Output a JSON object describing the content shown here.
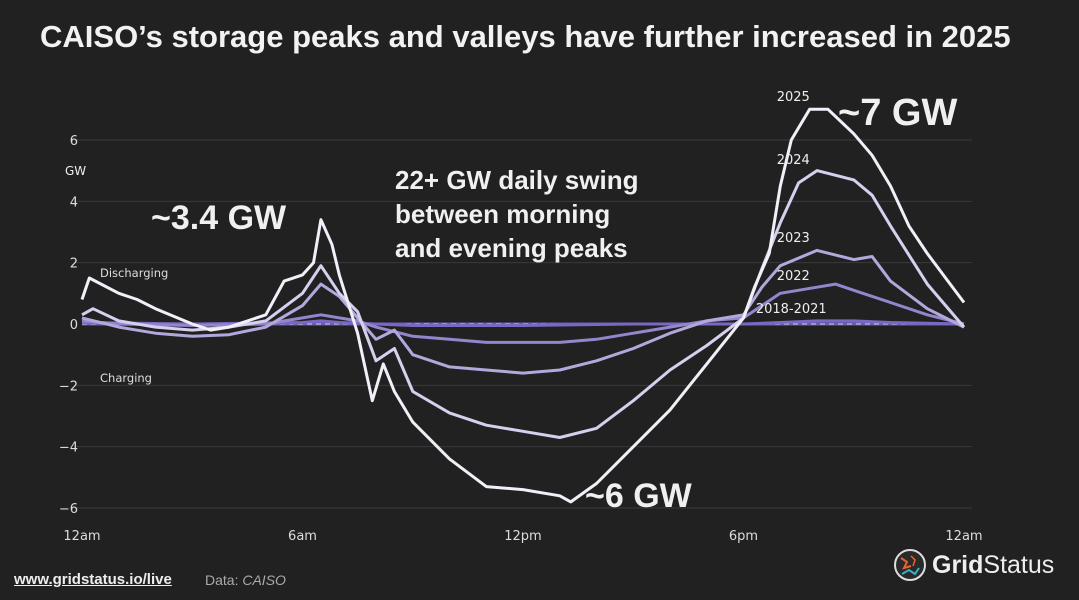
{
  "title": "CAISO’s storage peaks and valleys have further increased in 2025",
  "footer": {
    "link": "www.gridstatus.io/live",
    "source_label": "Data:",
    "source": "CAISO"
  },
  "logo": {
    "bold": "Grid",
    "regular": "Status"
  },
  "chart_data": {
    "type": "line",
    "title": "CAISO’s storage peaks and valleys have further increased in 2025",
    "ylabel": "GW",
    "ylim": [
      -6.5,
      7.2
    ],
    "yticks": [
      -6,
      -4,
      -2,
      0,
      2,
      4,
      6
    ],
    "ytick_labels": [
      "−6",
      "−4",
      "−2",
      "0",
      "2",
      "4",
      "6"
    ],
    "xlim": [
      0,
      24
    ],
    "xticks": [
      0,
      6,
      12,
      18,
      24
    ],
    "xtick_labels": [
      "12am",
      "6am",
      "12pm",
      "6pm",
      "12am"
    ],
    "grid": true,
    "zone_labels": {
      "discharging": "Discharging",
      "charging": "Charging"
    },
    "annotations": {
      "morning_peak": "~3.4 GW",
      "evening_peak": "~7 GW",
      "valley": "~6 GW",
      "swing": [
        "22+ GW daily swing",
        "between morning",
        "and evening peaks"
      ]
    },
    "series": [
      {
        "name": "2018-2021",
        "color": "#7a68c2",
        "points": [
          [
            0,
            0.05
          ],
          [
            3,
            0
          ],
          [
            6,
            0.05
          ],
          [
            6.5,
            0.1
          ],
          [
            7,
            0.05
          ],
          [
            9,
            -0.05
          ],
          [
            12,
            -0.05
          ],
          [
            15,
            0
          ],
          [
            18,
            0
          ],
          [
            19,
            0.05
          ],
          [
            20,
            0.1
          ],
          [
            21,
            0.1
          ],
          [
            22,
            0.05
          ],
          [
            24,
            0
          ]
        ]
      },
      {
        "name": "2022",
        "color": "#9485cc",
        "points": [
          [
            0,
            0.1
          ],
          [
            1,
            0
          ],
          [
            3,
            -0.05
          ],
          [
            5,
            0
          ],
          [
            6,
            0.2
          ],
          [
            6.5,
            0.3
          ],
          [
            7,
            0.2
          ],
          [
            7.5,
            0.1
          ],
          [
            8,
            -0.1
          ],
          [
            9,
            -0.4
          ],
          [
            10,
            -0.5
          ],
          [
            11,
            -0.6
          ],
          [
            12,
            -0.6
          ],
          [
            13,
            -0.6
          ],
          [
            14,
            -0.5
          ],
          [
            15,
            -0.3
          ],
          [
            16,
            -0.1
          ],
          [
            17,
            0.1
          ],
          [
            18,
            0.2
          ],
          [
            18.5,
            0.6
          ],
          [
            19,
            1.0
          ],
          [
            20,
            1.2
          ],
          [
            20.5,
            1.3
          ],
          [
            21,
            1.1
          ],
          [
            22,
            0.7
          ],
          [
            23,
            0.3
          ],
          [
            24,
            0
          ]
        ]
      },
      {
        "name": "2023",
        "color": "#b3a8dc",
        "points": [
          [
            0,
            0.2
          ],
          [
            1,
            -0.1
          ],
          [
            2,
            -0.3
          ],
          [
            3,
            -0.4
          ],
          [
            4,
            -0.35
          ],
          [
            5,
            -0.1
          ],
          [
            6,
            0.6
          ],
          [
            6.5,
            1.3
          ],
          [
            7,
            0.9
          ],
          [
            7.5,
            0.2
          ],
          [
            8,
            -0.5
          ],
          [
            8.5,
            -0.2
          ],
          [
            9,
            -1.0
          ],
          [
            10,
            -1.4
          ],
          [
            11,
            -1.5
          ],
          [
            12,
            -1.6
          ],
          [
            13,
            -1.5
          ],
          [
            14,
            -1.2
          ],
          [
            15,
            -0.8
          ],
          [
            16,
            -0.3
          ],
          [
            17,
            0.1
          ],
          [
            18,
            0.3
          ],
          [
            18.5,
            1.2
          ],
          [
            19,
            1.9
          ],
          [
            20,
            2.4
          ],
          [
            21,
            2.1
          ],
          [
            21.5,
            2.2
          ],
          [
            22,
            1.4
          ],
          [
            23,
            0.5
          ],
          [
            24,
            -0.1
          ]
        ]
      },
      {
        "name": "2024",
        "color": "#d6d0ee",
        "points": [
          [
            0,
            0.3
          ],
          [
            0.3,
            0.5
          ],
          [
            1,
            0.1
          ],
          [
            2,
            -0.1
          ],
          [
            3,
            -0.2
          ],
          [
            4,
            -0.1
          ],
          [
            5,
            0.1
          ],
          [
            6,
            1.0
          ],
          [
            6.5,
            1.9
          ],
          [
            7,
            1.0
          ],
          [
            7.5,
            0.4
          ],
          [
            8,
            -1.2
          ],
          [
            8.5,
            -0.8
          ],
          [
            9,
            -2.2
          ],
          [
            10,
            -2.9
          ],
          [
            11,
            -3.3
          ],
          [
            12,
            -3.5
          ],
          [
            13,
            -3.7
          ],
          [
            14,
            -3.4
          ],
          [
            15,
            -2.5
          ],
          [
            16,
            -1.5
          ],
          [
            17,
            -0.7
          ],
          [
            18,
            0.2
          ],
          [
            18.5,
            1.8
          ],
          [
            19,
            3.3
          ],
          [
            19.5,
            4.6
          ],
          [
            20,
            5.0
          ],
          [
            21,
            4.7
          ],
          [
            21.5,
            4.2
          ],
          [
            22,
            3.2
          ],
          [
            23,
            1.3
          ],
          [
            24,
            -0.1
          ]
        ]
      },
      {
        "name": "2025",
        "color": "#f1eff8",
        "points": [
          [
            0,
            0.8
          ],
          [
            0.2,
            1.5
          ],
          [
            1,
            1.0
          ],
          [
            1.5,
            0.8
          ],
          [
            2,
            0.5
          ],
          [
            3,
            0
          ],
          [
            3.5,
            -0.2
          ],
          [
            4,
            -0.1
          ],
          [
            5,
            0.3
          ],
          [
            5.5,
            1.4
          ],
          [
            6,
            1.6
          ],
          [
            6.3,
            2.0
          ],
          [
            6.5,
            3.4
          ],
          [
            6.8,
            2.6
          ],
          [
            7,
            1.6
          ],
          [
            7.5,
            -0.3
          ],
          [
            7.9,
            -2.5
          ],
          [
            8.2,
            -1.3
          ],
          [
            8.5,
            -2.2
          ],
          [
            9,
            -3.2
          ],
          [
            10,
            -4.4
          ],
          [
            11,
            -5.3
          ],
          [
            12,
            -5.4
          ],
          [
            13,
            -5.6
          ],
          [
            13.3,
            -5.8
          ],
          [
            14,
            -5.2
          ],
          [
            15,
            -4.0
          ],
          [
            16,
            -2.8
          ],
          [
            17,
            -1.3
          ],
          [
            18,
            0.2
          ],
          [
            18.3,
            1.2
          ],
          [
            18.7,
            2.3
          ],
          [
            19,
            4.5
          ],
          [
            19.3,
            6.0
          ],
          [
            19.8,
            7.0
          ],
          [
            20.3,
            7.0
          ],
          [
            21,
            6.2
          ],
          [
            21.5,
            5.5
          ],
          [
            22,
            4.5
          ],
          [
            22.5,
            3.2
          ],
          [
            23,
            2.3
          ],
          [
            23.5,
            1.5
          ],
          [
            24,
            0.7
          ]
        ]
      }
    ]
  }
}
